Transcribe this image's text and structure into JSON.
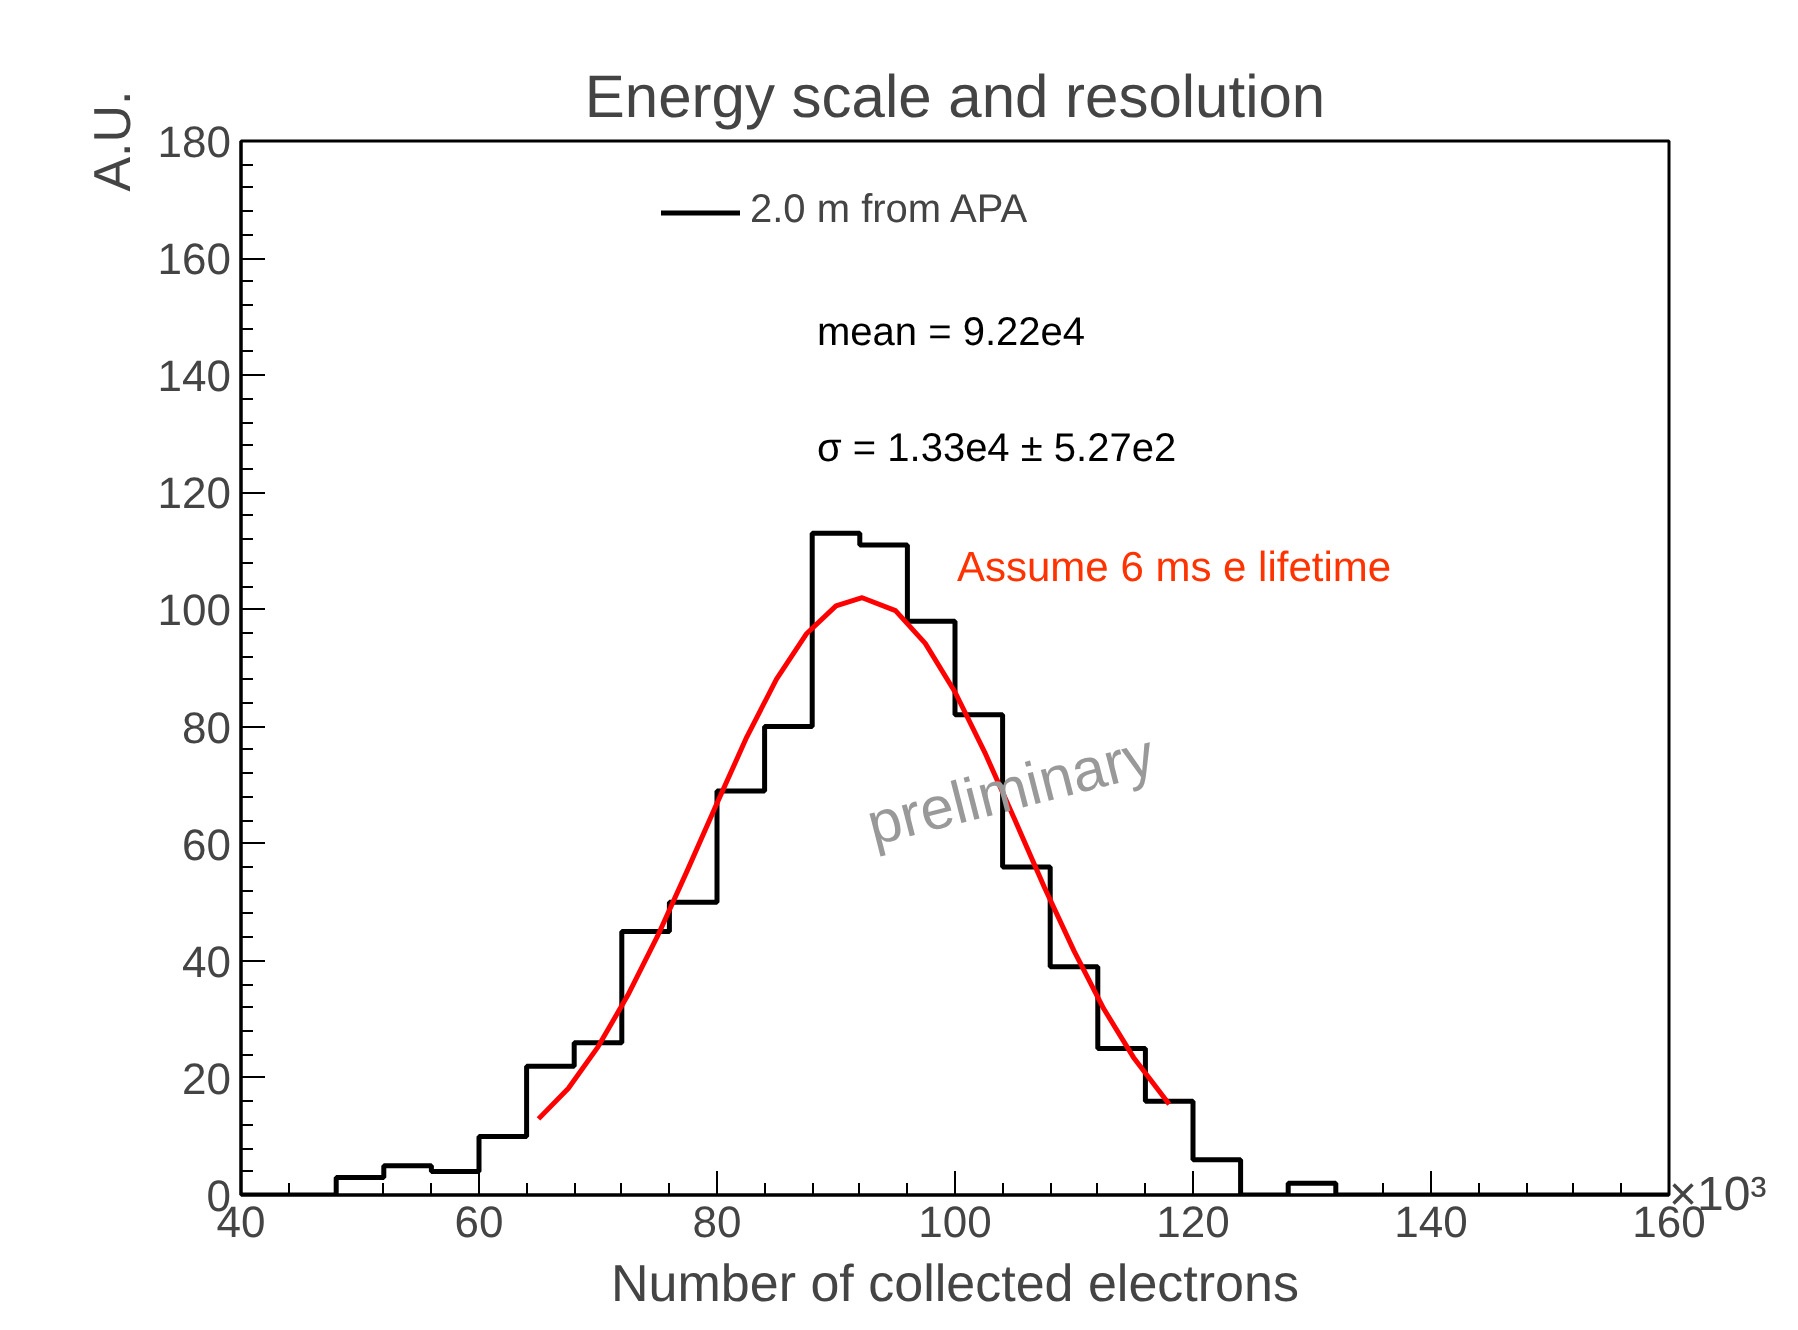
{
  "chart_data": {
    "type": "histogram",
    "title": "Energy scale and resolution",
    "xlabel": "Number of collected electrons",
    "ylabel": "A.U.",
    "bins": [
      40,
      44,
      48,
      52,
      56,
      60,
      64,
      68,
      72,
      76,
      80,
      84,
      88,
      92,
      96,
      100,
      104,
      108,
      112,
      116,
      120,
      124,
      128,
      132,
      136,
      140,
      144,
      148,
      152,
      156,
      160
    ],
    "series": [
      {
        "name": "2.0 m from APA",
        "color": "#000000",
        "values": [
          0,
          0,
          3,
          5,
          4,
          10,
          22,
          26,
          45,
          50,
          69,
          80,
          113,
          111,
          98,
          82,
          56,
          39,
          25,
          16,
          6,
          0,
          2,
          0,
          0,
          0,
          0,
          0,
          0,
          0
        ]
      },
      {
        "type": "line",
        "color": "#ff0000",
        "x": [
          65,
          67.5,
          70,
          72.5,
          75,
          77.5,
          80,
          82.5,
          85,
          87.5,
          90,
          92.2,
          95,
          97.5,
          100,
          102.5,
          105,
          107.5,
          110,
          112.5,
          115,
          118
        ],
        "values": [
          13,
          18.2,
          25.3,
          34.1,
          44.2,
          55.4,
          66.9,
          78.2,
          88.1,
          95.8,
          100.6,
          102,
          99.8,
          94.2,
          85.9,
          75.6,
          64.2,
          52.6,
          41.7,
          31.8,
          23.5,
          15.5
        ]
      }
    ],
    "annotations": [
      "mean = 9.22e4",
      "σ = 1.33e4 ± 5.27e2",
      "Assume 6 ms e lifetime",
      "preliminary",
      "×10³"
    ],
    "xlim": [
      40,
      160
    ],
    "ylim": [
      0,
      180
    ],
    "xticks": [
      40,
      60,
      80,
      100,
      120,
      140,
      160
    ],
    "yticks": [
      0,
      20,
      40,
      60,
      80,
      100,
      120,
      140,
      160,
      180
    ],
    "grid": false,
    "legend": "top"
  }
}
